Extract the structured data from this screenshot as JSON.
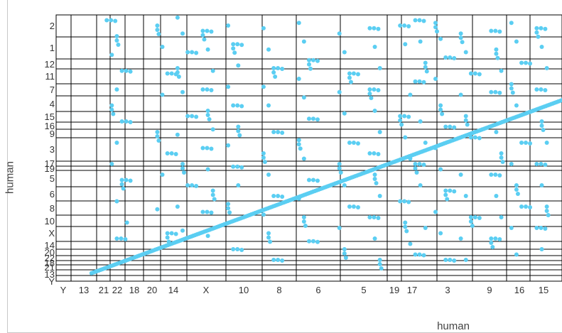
{
  "chart_data": {
    "type": "scatter",
    "xlabel": "human",
    "ylabel": "human",
    "x_categories": [
      "Y",
      "13",
      "21",
      "22",
      "18",
      "20",
      "14",
      "X",
      "10",
      "8",
      "6",
      "5",
      "19",
      "17",
      "3",
      "9",
      "16",
      "15"
    ],
    "x_tick_labels": [
      "Y",
      "13",
      "21",
      "22",
      "18",
      "20",
      "14",
      "X",
      "10",
      "8",
      "6",
      "5",
      "19",
      "17",
      "3",
      "9",
      "16",
      "15"
    ],
    "y_categories": [
      "Y",
      "13",
      "21",
      "22",
      "18",
      "20",
      "14",
      "X",
      "10",
      "8",
      "6",
      "5",
      "19",
      "17",
      "3",
      "9",
      "16",
      "15",
      "4",
      "7",
      "11",
      "12",
      "1",
      "2"
    ],
    "y_tick_labels": [
      "Y",
      "13",
      "21",
      "22",
      "18",
      "20",
      "14",
      "X",
      "10",
      "8",
      "6",
      "5",
      "19",
      "17",
      "3",
      "9",
      "16",
      "15",
      "4",
      "7",
      "11",
      "12",
      "1",
      "2"
    ],
    "x_range": [
      0,
      1
    ],
    "y_range": [
      0,
      1
    ],
    "grid": true,
    "legend": "none",
    "point_color": "#5bcef2",
    "diagonal_series": {
      "from": [
        0.07,
        0.03
      ],
      "to": [
        1.0,
        0.68
      ],
      "points": 260
    },
    "scatter_points": [
      [
        0.1,
        0.98
      ],
      [
        0.12,
        0.92
      ],
      [
        0.11,
        0.85
      ],
      [
        0.13,
        0.79
      ],
      [
        0.12,
        0.72
      ],
      [
        0.11,
        0.66
      ],
      [
        0.13,
        0.6
      ],
      [
        0.12,
        0.52
      ],
      [
        0.11,
        0.44
      ],
      [
        0.13,
        0.38
      ],
      [
        0.12,
        0.3
      ],
      [
        0.14,
        0.22
      ],
      [
        0.12,
        0.16
      ],
      [
        0.2,
        0.96
      ],
      [
        0.21,
        0.88
      ],
      [
        0.22,
        0.78
      ],
      [
        0.21,
        0.7
      ],
      [
        0.2,
        0.56
      ],
      [
        0.22,
        0.48
      ],
      [
        0.21,
        0.4
      ],
      [
        0.2,
        0.27
      ],
      [
        0.22,
        0.18
      ],
      [
        0.24,
        0.99
      ],
      [
        0.25,
        0.93
      ],
      [
        0.26,
        0.86
      ],
      [
        0.24,
        0.8
      ],
      [
        0.25,
        0.71
      ],
      [
        0.26,
        0.62
      ],
      [
        0.24,
        0.55
      ],
      [
        0.25,
        0.44
      ],
      [
        0.26,
        0.36
      ],
      [
        0.24,
        0.28
      ],
      [
        0.25,
        0.19
      ],
      [
        0.29,
        0.94
      ],
      [
        0.3,
        0.87
      ],
      [
        0.31,
        0.79
      ],
      [
        0.29,
        0.72
      ],
      [
        0.3,
        0.64
      ],
      [
        0.31,
        0.57
      ],
      [
        0.29,
        0.5
      ],
      [
        0.3,
        0.42
      ],
      [
        0.31,
        0.34
      ],
      [
        0.29,
        0.26
      ],
      [
        0.3,
        0.17
      ],
      [
        0.34,
        0.96
      ],
      [
        0.35,
        0.89
      ],
      [
        0.36,
        0.81
      ],
      [
        0.34,
        0.73
      ],
      [
        0.35,
        0.66
      ],
      [
        0.36,
        0.58
      ],
      [
        0.34,
        0.51
      ],
      [
        0.35,
        0.43
      ],
      [
        0.36,
        0.36
      ],
      [
        0.34,
        0.29
      ],
      [
        0.35,
        0.12
      ],
      [
        0.41,
        0.95
      ],
      [
        0.42,
        0.87
      ],
      [
        0.43,
        0.8
      ],
      [
        0.41,
        0.73
      ],
      [
        0.42,
        0.66
      ],
      [
        0.43,
        0.56
      ],
      [
        0.41,
        0.48
      ],
      [
        0.42,
        0.4
      ],
      [
        0.43,
        0.32
      ],
      [
        0.41,
        0.25
      ],
      [
        0.42,
        0.18
      ],
      [
        0.43,
        0.08
      ],
      [
        0.48,
        0.97
      ],
      [
        0.49,
        0.9
      ],
      [
        0.5,
        0.83
      ],
      [
        0.48,
        0.76
      ],
      [
        0.49,
        0.69
      ],
      [
        0.5,
        0.61
      ],
      [
        0.48,
        0.53
      ],
      [
        0.49,
        0.46
      ],
      [
        0.5,
        0.38
      ],
      [
        0.48,
        0.31
      ],
      [
        0.49,
        0.24
      ],
      [
        0.5,
        0.15
      ],
      [
        0.56,
        0.93
      ],
      [
        0.57,
        0.86
      ],
      [
        0.58,
        0.78
      ],
      [
        0.56,
        0.71
      ],
      [
        0.57,
        0.63
      ],
      [
        0.58,
        0.52
      ],
      [
        0.56,
        0.44
      ],
      [
        0.57,
        0.36
      ],
      [
        0.58,
        0.28
      ],
      [
        0.56,
        0.2
      ],
      [
        0.57,
        0.12
      ],
      [
        0.62,
        0.95
      ],
      [
        0.63,
        0.88
      ],
      [
        0.64,
        0.8
      ],
      [
        0.62,
        0.72
      ],
      [
        0.63,
        0.64
      ],
      [
        0.64,
        0.56
      ],
      [
        0.62,
        0.48
      ],
      [
        0.63,
        0.4
      ],
      [
        0.64,
        0.32
      ],
      [
        0.62,
        0.24
      ],
      [
        0.63,
        0.16
      ],
      [
        0.64,
        0.08
      ],
      [
        0.68,
        0.96
      ],
      [
        0.69,
        0.89
      ],
      [
        0.7,
        0.7
      ],
      [
        0.68,
        0.62
      ],
      [
        0.69,
        0.54
      ],
      [
        0.7,
        0.46
      ],
      [
        0.68,
        0.3
      ],
      [
        0.69,
        0.22
      ],
      [
        0.7,
        0.14
      ],
      [
        0.71,
        0.98
      ],
      [
        0.72,
        0.9
      ],
      [
        0.73,
        0.82
      ],
      [
        0.71,
        0.75
      ],
      [
        0.72,
        0.6
      ],
      [
        0.73,
        0.52
      ],
      [
        0.71,
        0.44
      ],
      [
        0.72,
        0.36
      ],
      [
        0.73,
        0.2
      ],
      [
        0.71,
        0.1
      ],
      [
        0.75,
        0.97
      ],
      [
        0.76,
        0.91
      ],
      [
        0.77,
        0.84
      ],
      [
        0.75,
        0.76
      ],
      [
        0.76,
        0.66
      ],
      [
        0.77,
        0.58
      ],
      [
        0.75,
        0.5
      ],
      [
        0.76,
        0.42
      ],
      [
        0.77,
        0.34
      ],
      [
        0.75,
        0.26
      ],
      [
        0.76,
        0.18
      ],
      [
        0.77,
        0.08
      ],
      [
        0.8,
        0.93
      ],
      [
        0.81,
        0.86
      ],
      [
        0.82,
        0.78
      ],
      [
        0.8,
        0.7
      ],
      [
        0.81,
        0.62
      ],
      [
        0.82,
        0.54
      ],
      [
        0.8,
        0.4
      ],
      [
        0.81,
        0.32
      ],
      [
        0.82,
        0.24
      ],
      [
        0.8,
        0.16
      ],
      [
        0.81,
        0.08
      ],
      [
        0.86,
        0.94
      ],
      [
        0.87,
        0.87
      ],
      [
        0.88,
        0.79
      ],
      [
        0.86,
        0.71
      ],
      [
        0.87,
        0.56
      ],
      [
        0.88,
        0.48
      ],
      [
        0.86,
        0.4
      ],
      [
        0.87,
        0.32
      ],
      [
        0.88,
        0.24
      ],
      [
        0.86,
        0.16
      ],
      [
        0.9,
        0.97
      ],
      [
        0.91,
        0.9
      ],
      [
        0.92,
        0.82
      ],
      [
        0.9,
        0.74
      ],
      [
        0.91,
        0.66
      ],
      [
        0.92,
        0.52
      ],
      [
        0.9,
        0.44
      ],
      [
        0.91,
        0.36
      ],
      [
        0.92,
        0.28
      ],
      [
        0.9,
        0.2
      ],
      [
        0.91,
        0.1
      ],
      [
        0.95,
        0.95
      ],
      [
        0.96,
        0.88
      ],
      [
        0.97,
        0.8
      ],
      [
        0.95,
        0.72
      ],
      [
        0.96,
        0.6
      ],
      [
        0.97,
        0.52
      ],
      [
        0.95,
        0.44
      ],
      [
        0.96,
        0.36
      ],
      [
        0.97,
        0.28
      ],
      [
        0.95,
        0.2
      ],
      [
        0.96,
        0.12
      ]
    ]
  }
}
